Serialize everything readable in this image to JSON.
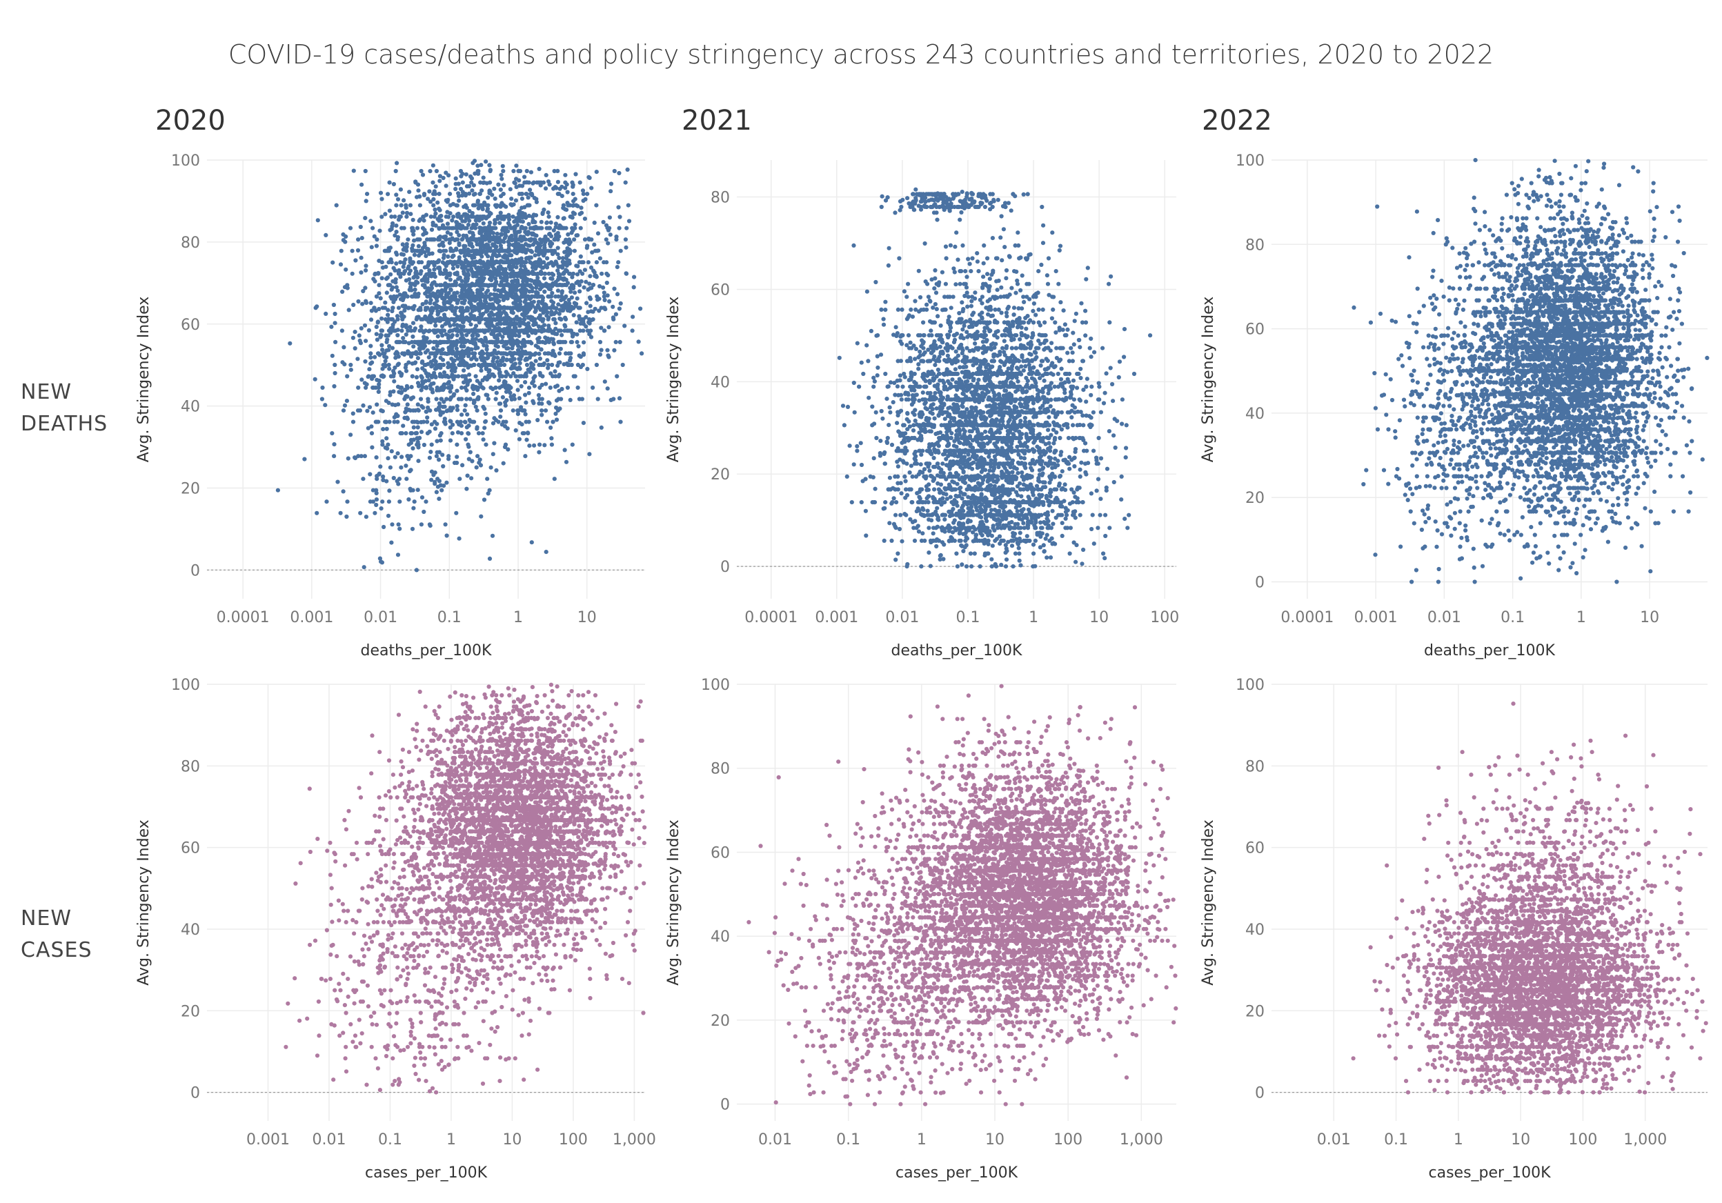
{
  "title": "COVID-19 cases/deaths and policy stringency across 243 countries and territories, 2020 to 2022",
  "years": [
    "2020",
    "2021",
    "2022"
  ],
  "rows": [
    {
      "key": "deaths",
      "label_line1": "NEW",
      "label_line2": "DEATHS",
      "color": "#4a72a2"
    },
    {
      "key": "cases",
      "label_line1": "NEW",
      "label_line2": "CASES",
      "color": "#b07aa1"
    }
  ],
  "chart_data": [
    {
      "type": "scatter",
      "row": "deaths",
      "year": "2020",
      "xlabel": "deaths_per_100K",
      "ylabel": "Avg. Stringency Index",
      "x_scale": "log",
      "xlim": [
        3e-05,
        70
      ],
      "ylim": [
        -7,
        100
      ],
      "x_ticks": [
        0.0001,
        0.001,
        0.01,
        0.1,
        1,
        10
      ],
      "x_tick_labels": [
        "0.0001",
        "0.001",
        "0.01",
        "0.1",
        "1",
        "10"
      ],
      "y_ticks": [
        0,
        20,
        40,
        60,
        80,
        100
      ],
      "y_tick_labels": [
        "0",
        "20",
        "40",
        "60",
        "80",
        "100"
      ],
      "reference_line_y": 0,
      "grid": true,
      "color": "#4a72a2",
      "approx_points": 4200,
      "cloud": [
        {
          "log_x_center": -0.3,
          "log_x_spread": 0.75,
          "y_center": 68,
          "y_spread": 15,
          "share": 0.8
        },
        {
          "log_x_center": -1.5,
          "log_x_spread": 0.6,
          "y_center": 50,
          "y_spread": 20,
          "share": 0.2
        }
      ]
    },
    {
      "type": "scatter",
      "row": "deaths",
      "year": "2021",
      "xlabel": "deaths_per_100K",
      "ylabel": "Avg. Stringency Index",
      "x_scale": "log",
      "xlim": [
        3e-05,
        150
      ],
      "ylim": [
        -7,
        88
      ],
      "x_ticks": [
        0.0001,
        0.001,
        0.01,
        0.1,
        1,
        10,
        100
      ],
      "x_tick_labels": [
        "0.0001",
        "0.001",
        "0.01",
        "0.1",
        "1",
        "10",
        "100"
      ],
      "y_ticks": [
        0,
        20,
        40,
        60,
        80
      ],
      "y_tick_labels": [
        "0",
        "20",
        "40",
        "60",
        "80"
      ],
      "reference_line_y": 0,
      "grid": true,
      "color": "#4a72a2",
      "approx_points": 3800,
      "cloud": [
        {
          "log_x_center": -0.7,
          "log_x_spread": 0.75,
          "y_center": 32,
          "y_spread": 15,
          "share": 0.85
        },
        {
          "log_x_center": -1.3,
          "log_x_spread": 0.5,
          "y_center": 79,
          "y_spread": 1,
          "share": 0.05
        },
        {
          "log_x_center": -0.6,
          "log_x_spread": 0.7,
          "y_center": 12,
          "y_spread": 4,
          "share": 0.1
        }
      ]
    },
    {
      "type": "scatter",
      "row": "deaths",
      "year": "2022",
      "xlabel": "deaths_per_100K",
      "ylabel": "Avg. Stringency Index",
      "x_scale": "log",
      "xlim": [
        3e-05,
        70
      ],
      "ylim": [
        -4,
        100
      ],
      "x_ticks": [
        0.0001,
        0.001,
        0.01,
        0.1,
        1,
        10
      ],
      "x_tick_labels": [
        "0.0001",
        "0.001",
        "0.01",
        "0.1",
        "1",
        "10"
      ],
      "y_ticks": [
        0,
        20,
        40,
        60,
        80,
        100
      ],
      "y_tick_labels": [
        "0",
        "20",
        "40",
        "60",
        "80",
        "100"
      ],
      "reference_line_y": null,
      "grid": true,
      "color": "#4a72a2",
      "approx_points": 5200,
      "cloud": [
        {
          "log_x_center": -0.2,
          "log_x_spread": 0.65,
          "y_center": 52,
          "y_spread": 17,
          "share": 0.9
        },
        {
          "log_x_center": -1.8,
          "log_x_spread": 0.5,
          "y_center": 38,
          "y_spread": 16,
          "share": 0.1
        }
      ]
    },
    {
      "type": "scatter",
      "row": "cases",
      "year": "2020",
      "xlabel": "cases_per_100K",
      "ylabel": "Avg. Stringency Index",
      "x_scale": "log",
      "xlim": [
        0.0001,
        1500
      ],
      "ylim": [
        -7,
        100
      ],
      "x_ticks": [
        0.001,
        0.01,
        0.1,
        1,
        10,
        100,
        1000
      ],
      "x_tick_labels": [
        "0.001",
        "0.01",
        "0.1",
        "1",
        "10",
        "100",
        "1,000"
      ],
      "y_ticks": [
        0,
        20,
        40,
        60,
        80,
        100
      ],
      "y_tick_labels": [
        "0",
        "20",
        "40",
        "60",
        "80",
        "100"
      ],
      "reference_line_y": 0,
      "grid": true,
      "color": "#b07aa1",
      "approx_points": 4800,
      "cloud": [
        {
          "log_x_center": 1.1,
          "log_x_spread": 0.8,
          "y_center": 65,
          "y_spread": 15,
          "share": 0.85
        },
        {
          "log_x_center": -0.5,
          "log_x_spread": 0.8,
          "y_center": 35,
          "y_spread": 20,
          "share": 0.15
        }
      ]
    },
    {
      "type": "scatter",
      "row": "cases",
      "year": "2021",
      "xlabel": "cases_per_100K",
      "ylabel": "Avg. Stringency Index",
      "x_scale": "log",
      "xlim": [
        0.003,
        3000
      ],
      "ylim": [
        -4,
        100
      ],
      "x_ticks": [
        0.01,
        0.1,
        1,
        10,
        100,
        1000
      ],
      "x_tick_labels": [
        "0.01",
        "0.1",
        "1",
        "10",
        "100",
        "1,000"
      ],
      "y_ticks": [
        0,
        20,
        40,
        60,
        80,
        100
      ],
      "y_tick_labels": [
        "0",
        "20",
        "40",
        "60",
        "80",
        "100"
      ],
      "reference_line_y": null,
      "grid": true,
      "color": "#b07aa1",
      "approx_points": 5500,
      "cloud": [
        {
          "log_x_center": 1.4,
          "log_x_spread": 0.75,
          "y_center": 50,
          "y_spread": 15,
          "share": 0.85
        },
        {
          "log_x_center": -0.3,
          "log_x_spread": 0.7,
          "y_center": 30,
          "y_spread": 15,
          "share": 0.15
        }
      ]
    },
    {
      "type": "scatter",
      "row": "cases",
      "year": "2022",
      "xlabel": "cases_per_100K",
      "ylabel": "Avg. Stringency Index",
      "x_scale": "log",
      "xlim": [
        0.001,
        10000
      ],
      "ylim": [
        -7,
        100
      ],
      "x_ticks": [
        0.01,
        0.1,
        1,
        10,
        100,
        1000
      ],
      "x_tick_labels": [
        "0.01",
        "0.1",
        "1",
        "10",
        "100",
        "1,000"
      ],
      "y_ticks": [
        0,
        20,
        40,
        60,
        80,
        100
      ],
      "y_tick_labels": [
        "0",
        "20",
        "40",
        "60",
        "80",
        "100"
      ],
      "reference_line_y": 0,
      "grid": true,
      "color": "#b07aa1",
      "approx_points": 4600,
      "cloud": [
        {
          "log_x_center": 1.3,
          "log_x_spread": 0.9,
          "y_center": 25,
          "y_spread": 12,
          "share": 0.85
        },
        {
          "log_x_center": 1.5,
          "log_x_spread": 0.8,
          "y_center": 50,
          "y_spread": 15,
          "share": 0.15
        }
      ]
    }
  ]
}
